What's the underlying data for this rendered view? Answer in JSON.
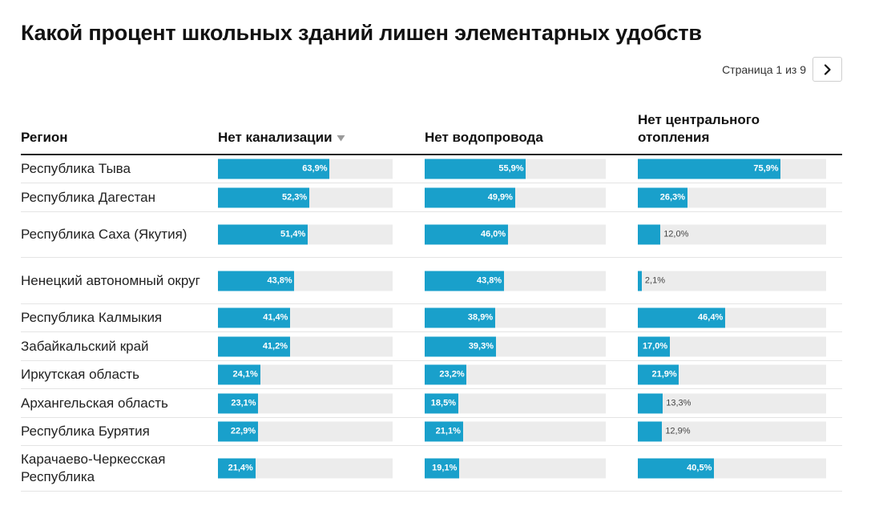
{
  "title": "Какой процент школьных зданий лишен элементарных удобств",
  "pager": {
    "text": "Страница 1 из 9",
    "next_icon": "chevron-right-icon"
  },
  "colors": {
    "bar": "#19a0cb",
    "track": "#ececec"
  },
  "columns": {
    "region": "Регион",
    "c1": "Нет канализации",
    "c2": "Нет водопровода",
    "c3": "Нет центрального отопления"
  },
  "chart_data": {
    "type": "table",
    "title": "Какой процент школьных зданий лишен элементарных удобств",
    "columns": [
      "Регион",
      "Нет канализации",
      "Нет водопровода",
      "Нет центрального отопления"
    ],
    "sorted_by": "Нет канализации",
    "value_max": 100,
    "rows": [
      {
        "region": "Республика Тыва",
        "values": [
          63.9,
          55.9,
          75.9
        ],
        "labels": [
          "63,9%",
          "55,9%",
          "75,9%"
        ]
      },
      {
        "region": "Республика Дагестан",
        "values": [
          52.3,
          49.9,
          26.3
        ],
        "labels": [
          "52,3%",
          "49,9%",
          "26,3%"
        ]
      },
      {
        "region": "Республика Саха (Якутия)",
        "values": [
          51.4,
          46.0,
          12.0
        ],
        "labels": [
          "51,4%",
          "46,0%",
          "12,0%"
        ]
      },
      {
        "region": "Ненецкий автономный округ",
        "values": [
          43.8,
          43.8,
          2.1
        ],
        "labels": [
          "43,8%",
          "43,8%",
          "2,1%"
        ]
      },
      {
        "region": "Республика Калмыкия",
        "values": [
          41.4,
          38.9,
          46.4
        ],
        "labels": [
          "41,4%",
          "38,9%",
          "46,4%"
        ]
      },
      {
        "region": "Забайкальский край",
        "values": [
          41.2,
          39.3,
          17.0
        ],
        "labels": [
          "41,2%",
          "39,3%",
          "17,0%"
        ]
      },
      {
        "region": "Иркутская область",
        "values": [
          24.1,
          23.2,
          21.9
        ],
        "labels": [
          "24,1%",
          "23,2%",
          "21,9%"
        ]
      },
      {
        "region": "Архангельская область",
        "values": [
          23.1,
          18.5,
          13.3
        ],
        "labels": [
          "23,1%",
          "18,5%",
          "13,3%"
        ]
      },
      {
        "region": "Республика Бурятия",
        "values": [
          22.9,
          21.1,
          12.9
        ],
        "labels": [
          "22,9%",
          "21,1%",
          "12,9%"
        ]
      },
      {
        "region": "Карачаево-Черкесская Республика",
        "values": [
          21.4,
          19.1,
          40.5
        ],
        "labels": [
          "21,4%",
          "19,1%",
          "40,5%"
        ]
      }
    ]
  }
}
